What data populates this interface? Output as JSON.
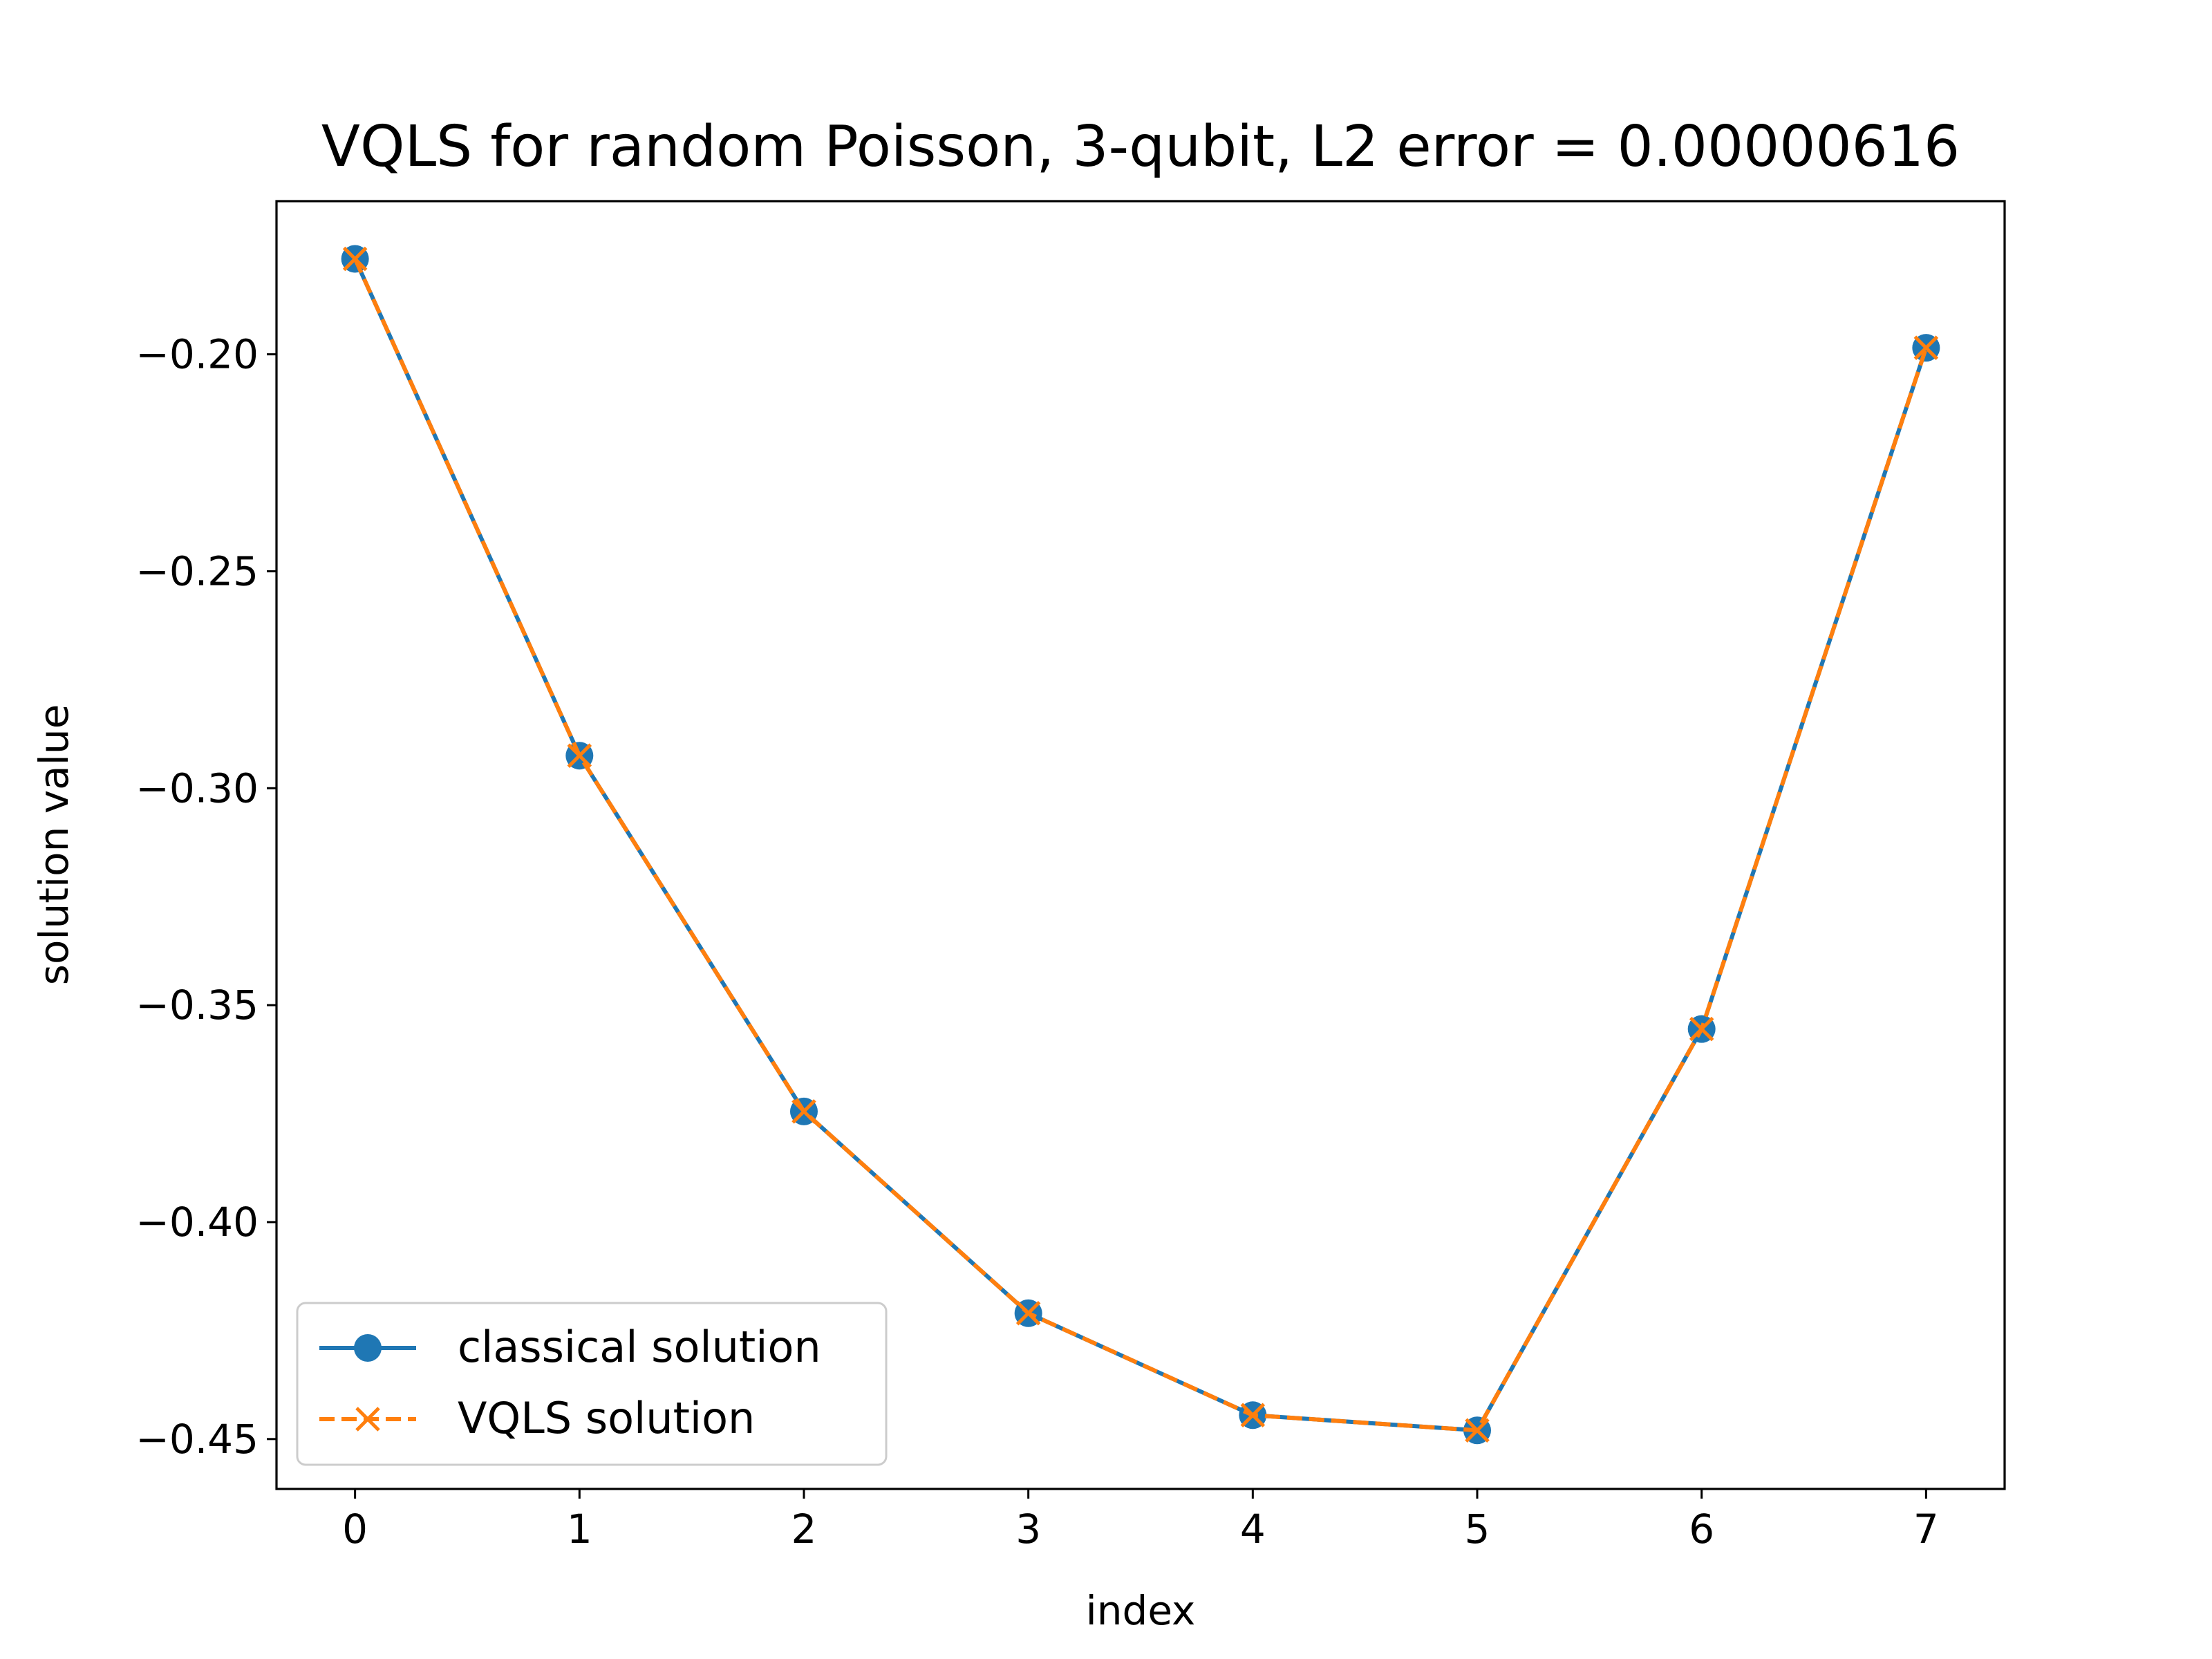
{
  "chart_data": {
    "type": "line",
    "title": "VQLS for random Poisson, 3-qubit, L2 error = 0.00000616",
    "xlabel": "index",
    "ylabel": "solution value",
    "x": [
      0,
      1,
      2,
      3,
      4,
      5,
      6,
      7
    ],
    "xlim": [
      -0.35,
      7.35
    ],
    "ylim": [
      -0.4615,
      -0.1647
    ],
    "xticks": [
      0,
      1,
      2,
      3,
      4,
      5,
      6,
      7
    ],
    "xtick_labels": [
      "0",
      "1",
      "2",
      "3",
      "4",
      "5",
      "6",
      "7"
    ],
    "yticks": [
      -0.45,
      -0.4,
      -0.35,
      -0.3,
      -0.25,
      -0.2
    ],
    "ytick_labels": [
      "−0.45",
      "−0.40",
      "−0.35",
      "−0.30",
      "−0.25",
      "−0.20"
    ],
    "grid": false,
    "legend_position": "lower-left",
    "series": [
      {
        "name": "classical solution",
        "values": [
          -0.178,
          -0.2925,
          -0.3745,
          -0.421,
          -0.4445,
          -0.448,
          -0.3555,
          -0.1985
        ],
        "color": "#1f77b4",
        "line_style": "solid",
        "marker": "circle"
      },
      {
        "name": "VQLS solution",
        "values": [
          -0.178,
          -0.2925,
          -0.3745,
          -0.421,
          -0.4445,
          -0.448,
          -0.3555,
          -0.1985
        ],
        "color": "#ff7f0e",
        "line_style": "dashed",
        "marker": "x"
      }
    ]
  }
}
